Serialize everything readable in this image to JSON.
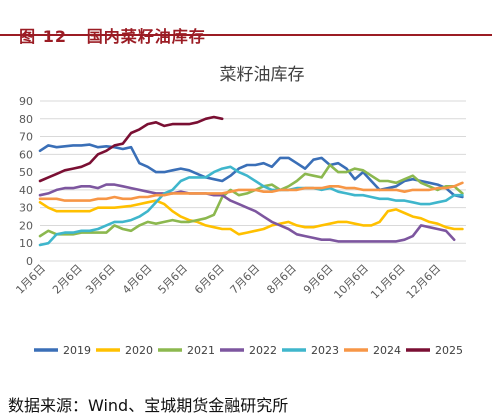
{
  "header": {
    "figure_no": "图 12",
    "title": "国内菜籽油库存"
  },
  "footer": {
    "source": "数据来源：Wind、宝城期货金融研究所"
  },
  "colors": {
    "header": "#9b1c24",
    "2019": "#3a6fb7",
    "2020": "#ffc000",
    "2021": "#8cb84f",
    "2022": "#7d569f",
    "2023": "#3fb6cc",
    "2024": "#f79646",
    "2025": "#7a0f33"
  },
  "chart_data": {
    "type": "line",
    "title": "菜籽油库存",
    "ylim": [
      0,
      90
    ],
    "yticks": [
      0,
      10,
      20,
      30,
      40,
      50,
      60,
      70,
      80,
      90
    ],
    "x_domain": [
      1,
      361
    ],
    "xticks": [
      {
        "label": "1月6日",
        "day": 6
      },
      {
        "label": "2月6日",
        "day": 37
      },
      {
        "label": "3月6日",
        "day": 65
      },
      {
        "label": "4月6日",
        "day": 96
      },
      {
        "label": "5月6日",
        "day": 126
      },
      {
        "label": "6月6日",
        "day": 157
      },
      {
        "label": "7月6日",
        "day": 187
      },
      {
        "label": "8月6日",
        "day": 218
      },
      {
        "label": "9月6日",
        "day": 249
      },
      {
        "label": "10月6日",
        "day": 279
      },
      {
        "label": "11月6日",
        "day": 310
      },
      {
        "label": "12月6日",
        "day": 340
      }
    ],
    "grid": true,
    "legend_position": "bottom",
    "series": [
      {
        "name": "2019",
        "x": [
          1,
          8,
          15,
          22,
          29,
          36,
          43,
          50,
          57,
          64,
          71,
          78,
          85,
          92,
          99,
          106,
          113,
          120,
          127,
          134,
          141,
          148,
          155,
          162,
          169,
          176,
          183,
          190,
          197,
          204,
          211,
          218,
          225,
          232,
          239,
          246,
          253,
          260,
          267,
          274,
          281,
          288,
          295,
          302,
          309,
          316,
          323,
          330,
          337,
          344,
          351,
          358
        ],
        "values": [
          62,
          65,
          64,
          64.5,
          65,
          65,
          65.5,
          64,
          64.5,
          64,
          63,
          64,
          55,
          53,
          50,
          50,
          51,
          52,
          51,
          49,
          47,
          46,
          45,
          48,
          52,
          54,
          54,
          55,
          53,
          58,
          58,
          55,
          52,
          57,
          58,
          54,
          55,
          52,
          46,
          50,
          45,
          40,
          41,
          42,
          45,
          46,
          45,
          44,
          43,
          41,
          37,
          36
        ]
      },
      {
        "name": "2020",
        "x": [
          1,
          8,
          15,
          22,
          29,
          36,
          43,
          50,
          57,
          64,
          71,
          78,
          85,
          92,
          99,
          106,
          113,
          120,
          127,
          134,
          141,
          148,
          155,
          162,
          169,
          176,
          183,
          190,
          197,
          204,
          211,
          218,
          225,
          232,
          239,
          246,
          253,
          260,
          267,
          274,
          281,
          288,
          295,
          302,
          309,
          316,
          323,
          330,
          337,
          344,
          351,
          358
        ],
        "values": [
          33,
          30,
          28,
          28,
          28,
          28,
          28,
          30,
          30,
          30,
          30.5,
          31,
          32,
          33,
          34,
          32,
          28,
          25,
          23,
          22,
          20,
          19,
          18,
          18,
          15,
          16,
          17,
          18,
          20,
          21,
          22,
          20,
          19,
          19,
          20,
          21,
          22,
          22,
          21,
          20,
          20,
          22,
          28,
          29,
          27,
          25,
          24,
          22,
          21,
          19,
          18,
          18
        ]
      },
      {
        "name": "2021",
        "x": [
          1,
          8,
          15,
          22,
          29,
          36,
          43,
          50,
          57,
          64,
          71,
          78,
          85,
          92,
          99,
          106,
          113,
          120,
          127,
          134,
          141,
          148,
          155,
          162,
          169,
          176,
          183,
          190,
          197,
          204,
          211,
          218,
          225,
          232,
          239,
          246,
          253,
          260,
          267,
          274,
          281,
          288,
          295,
          302,
          309,
          316,
          323,
          330,
          337,
          344,
          351,
          358
        ],
        "values": [
          14,
          17,
          15,
          15,
          15,
          16,
          16,
          16,
          16,
          20,
          18,
          17,
          20,
          22,
          21,
          22,
          23,
          22,
          22,
          23,
          24,
          26,
          36,
          40,
          37,
          38,
          40,
          42,
          43,
          40,
          42,
          45,
          49,
          48,
          47,
          54,
          50,
          50,
          52,
          51,
          48,
          45,
          45,
          44,
          46,
          48,
          44,
          42,
          40,
          42,
          42,
          38
        ]
      },
      {
        "name": "2022",
        "x": [
          1,
          8,
          15,
          22,
          29,
          36,
          43,
          50,
          57,
          64,
          71,
          78,
          85,
          92,
          99,
          106,
          113,
          120,
          127,
          134,
          141,
          148,
          155,
          162,
          169,
          176,
          183,
          190,
          197,
          204,
          211,
          218,
          225,
          232,
          239,
          246,
          253,
          260,
          267,
          274,
          281,
          288,
          295,
          302,
          309,
          316,
          323,
          330,
          337,
          344,
          351
        ],
        "values": [
          37,
          38,
          40,
          41,
          41,
          42,
          42,
          41,
          43,
          43,
          42,
          41,
          40,
          39,
          38,
          38,
          38,
          39,
          38,
          38,
          38,
          37,
          37,
          34,
          32,
          30,
          28,
          25,
          22,
          20,
          18,
          15,
          14,
          13,
          12,
          12,
          11,
          11,
          11,
          11,
          11,
          11,
          11,
          11,
          12,
          14,
          20,
          19,
          18,
          17,
          12
        ]
      },
      {
        "name": "2023",
        "x": [
          1,
          8,
          15,
          22,
          29,
          36,
          43,
          50,
          57,
          64,
          71,
          78,
          85,
          92,
          99,
          106,
          113,
          120,
          127,
          134,
          141,
          148,
          155,
          162,
          169,
          176,
          183,
          190,
          197,
          204,
          211,
          218,
          225,
          232,
          239,
          246,
          253,
          260,
          267,
          274,
          281,
          288,
          295,
          302,
          309,
          316,
          323,
          330,
          337,
          344,
          351,
          358
        ],
        "values": [
          9,
          10,
          15,
          16,
          16,
          17,
          17,
          18,
          20,
          22,
          22,
          23,
          25,
          28,
          33,
          38,
          40,
          45,
          47,
          47,
          47,
          50,
          52,
          53,
          50,
          48,
          45,
          42,
          40,
          40,
          40,
          41,
          41,
          41,
          40,
          41,
          39,
          38,
          37,
          37,
          36,
          35,
          35,
          34,
          34,
          33,
          32,
          32,
          33,
          34,
          37,
          37
        ]
      },
      {
        "name": "2024",
        "x": [
          1,
          8,
          15,
          22,
          29,
          36,
          43,
          50,
          57,
          64,
          71,
          78,
          85,
          92,
          99,
          106,
          113,
          120,
          127,
          134,
          141,
          148,
          155,
          162,
          169,
          176,
          183,
          190,
          197,
          204,
          211,
          218,
          225,
          232,
          239,
          246,
          253,
          260,
          267,
          274,
          281,
          288,
          295,
          302,
          309,
          316,
          323,
          330,
          337,
          344,
          351,
          358
        ],
        "values": [
          35,
          35,
          35,
          34,
          34,
          34,
          34,
          35,
          35,
          36,
          35,
          35,
          36,
          36,
          37,
          37,
          38,
          38,
          38,
          38,
          38,
          38,
          38,
          39,
          40,
          40,
          40,
          39,
          39,
          40,
          40,
          40,
          41,
          41,
          41,
          42,
          42,
          41,
          41,
          40,
          40,
          40,
          40,
          40,
          39,
          40,
          40,
          40,
          41,
          41,
          42,
          44
        ]
      },
      {
        "name": "2025",
        "x": [
          1,
          8,
          15,
          22,
          29,
          36,
          43,
          50,
          57,
          64,
          71,
          78,
          85,
          92,
          99,
          106,
          113,
          120,
          127,
          134,
          141,
          148,
          155
        ],
        "values": [
          45,
          47,
          49,
          51,
          52,
          53,
          55,
          60,
          62,
          65,
          66,
          72,
          74,
          77,
          78,
          76,
          77,
          77,
          77,
          78,
          80,
          81,
          80
        ]
      }
    ]
  }
}
